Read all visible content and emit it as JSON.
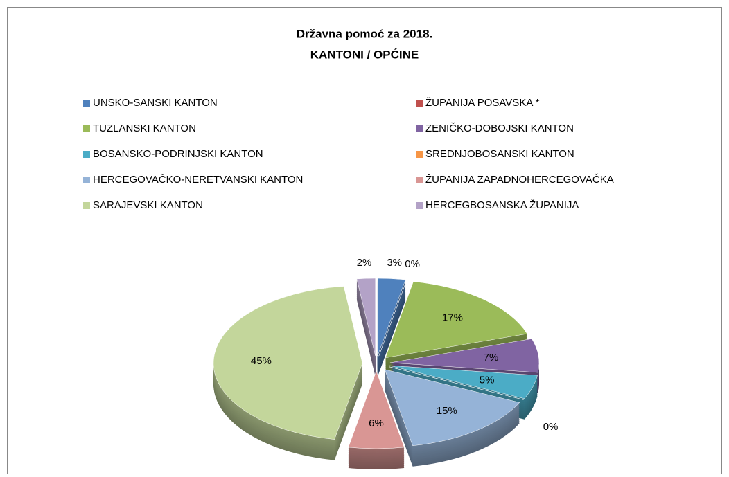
{
  "chart_data": {
    "type": "pie",
    "title": "Državna pomoć za 2018.",
    "subtitle": "KANTONI / OPĆINE",
    "categories": [
      "UNSKO-SANSKI KANTON",
      "ŽUPANIJA POSAVSKA *",
      "TUZLANSKI KANTON",
      "ZENIČKO-DOBOJSKI KANTON",
      "BOSANSKO-PODRINJSKI KANTON",
      "SREDNJOBOSANSKI KANTON",
      "HERCEGOVAČKO-NERETVANSKI KANTON",
      "ŽUPANIJA ZAPADNOHERCEGOVAČKA",
      "SARAJEVSKI KANTON",
      "HERCEGBOSANSKA ŽUPANIJA"
    ],
    "values": [
      3,
      0,
      17,
      7,
      5,
      0,
      15,
      6,
      45,
      2
    ],
    "value_labels": [
      "3%",
      "0%",
      "17%",
      "7%",
      "5%",
      "0%",
      "15%",
      "6%",
      "45%",
      "2%"
    ],
    "colors": [
      "#4f81bd",
      "#c0504d",
      "#9bbb59",
      "#8064a2",
      "#4bacc6",
      "#f79646",
      "#95b3d7",
      "#d99694",
      "#c3d69b",
      "#b3a2c7"
    ]
  }
}
